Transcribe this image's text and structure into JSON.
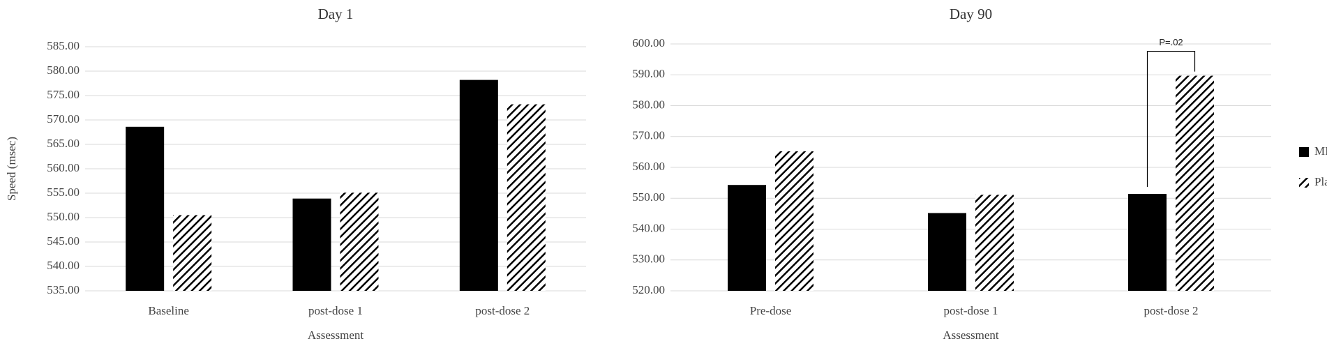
{
  "chart_data": [
    {
      "type": "bar",
      "title": "Day 1",
      "y_label": "Speed (msec)",
      "x_label": "Assessment",
      "categories": [
        "Baseline",
        "post-dose 1",
        "post-dose 2"
      ],
      "series": [
        {
          "color": "#000000",
          "values": [
            568.6,
            553.9,
            578.2
          ]
        },
        {
          "color": "#000000",
          "pattern": "hatch",
          "values": [
            550.5,
            555.1,
            573.2
          ]
        }
      ],
      "ylim": [
        535,
        585
      ],
      "yticks": [
        {
          "value": 535,
          "label": "535.00"
        },
        {
          "value": 540,
          "label": "540.00"
        },
        {
          "value": 545,
          "label": "545.00"
        },
        {
          "value": 550,
          "label": "550.00"
        },
        {
          "value": 555,
          "label": "555.00"
        },
        {
          "value": 560,
          "label": "560.00"
        },
        {
          "value": 565,
          "label": "565.00"
        },
        {
          "value": 570,
          "label": "570.00"
        },
        {
          "value": 575,
          "label": "575.00"
        },
        {
          "value": 580,
          "label": "580.00"
        },
        {
          "value": 585,
          "label": "585.00"
        }
      ],
      "grid": true
    },
    {
      "type": "bar",
      "title": "Day 90",
      "x_label": "Assessment",
      "categories": [
        "Pre-dose",
        "post-dose 1",
        "post-dose 2"
      ],
      "series": [
        {
          "name": "MIHS",
          "color": "#000000",
          "values": [
            554.3,
            545.2,
            551.4
          ]
        },
        {
          "name": "Placebo",
          "color": "#000000",
          "pattern": "hatch",
          "values": [
            565.2,
            551.1,
            589.7
          ]
        }
      ],
      "ylim": [
        520,
        600
      ],
      "yticks": [
        {
          "value": 520,
          "label": "520.00"
        },
        {
          "value": 530,
          "label": "530.00"
        },
        {
          "value": 540,
          "label": "540.00"
        },
        {
          "value": 550,
          "label": "550.00"
        },
        {
          "value": 560,
          "label": "560.00"
        },
        {
          "value": 570,
          "label": "570.00"
        },
        {
          "value": 580,
          "label": "580.00"
        },
        {
          "value": 590,
          "label": "590.00"
        },
        {
          "value": 600,
          "label": "600.00"
        }
      ],
      "grid": true,
      "annotation": {
        "text": "P=.02",
        "category": 2
      },
      "legend": "right"
    }
  ]
}
